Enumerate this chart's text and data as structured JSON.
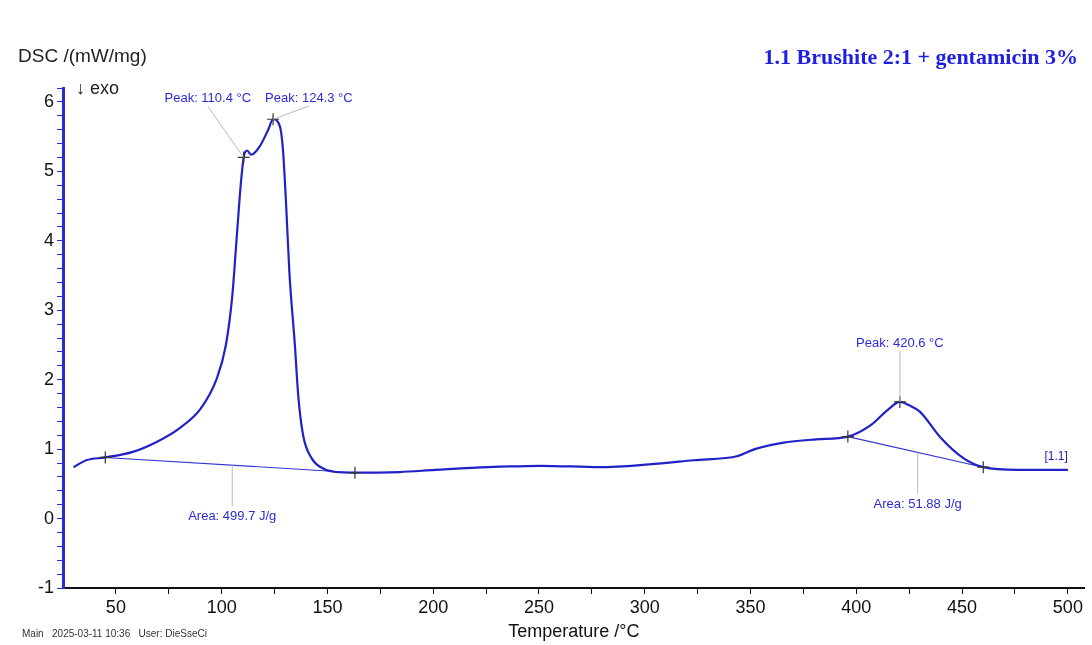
{
  "chart_data": {
    "type": "line",
    "title": "1.1 Brushite 2:1 + gentamicin 3%",
    "xlabel": "Temperature /°C",
    "ylabel": "DSC /(mW/mg)",
    "annotations": [
      "↓ exo",
      "Main   2025-03-11 10:36   User: DieSseCi",
      {
        "text": "Peak: 110.4 °C",
        "x": 110.4,
        "y": 5.2
      },
      {
        "text": "Peak: 124.3 °C",
        "x": 124.3,
        "y": 5.75
      },
      {
        "text": "Peak: 420.6 °C",
        "x": 420.6,
        "y": 1.68
      },
      {
        "text": "Area: 499.7 J/g",
        "x": 105,
        "y": 0.77
      },
      {
        "text": "Area: 51.88 J/g",
        "x": 429,
        "y": 0.95
      }
    ],
    "series": [
      {
        "name": "[1.1]",
        "color": "#2121c8",
        "marker": "none",
        "x": [
          30,
          36,
          45,
          58,
          69,
          80,
          90,
          97.5,
          102,
          105,
          107,
          109,
          110.4,
          112,
          114,
          118,
          122,
          124.3,
          127.5,
          129,
          130.5,
          132,
          134.6,
          136.2,
          138.5,
          142.5,
          148,
          154,
          163,
          184,
          201,
          226,
          251,
          279,
          302,
          323,
          344,
          352,
          365,
          381,
          396,
          407,
          415,
          420.6,
          425,
          430,
          440,
          450.6,
          460,
          478,
          500
        ],
        "values": [
          0.74,
          0.84,
          0.88,
          0.96,
          1.1,
          1.3,
          1.58,
          2.0,
          2.5,
          3.2,
          4.0,
          4.8,
          5.2,
          5.3,
          5.24,
          5.36,
          5.6,
          5.75,
          5.65,
          5.3,
          4.5,
          3.55,
          2.5,
          1.77,
          1.2,
          0.87,
          0.72,
          0.67,
          0.66,
          0.67,
          0.7,
          0.74,
          0.76,
          0.74,
          0.78,
          0.84,
          0.9,
          1.0,
          1.09,
          1.14,
          1.18,
          1.35,
          1.57,
          1.68,
          1.63,
          1.54,
          1.16,
          0.87,
          0.74,
          0.7,
          0.7
        ]
      },
      {
        "type": "line",
        "color": "#3434d0",
        "marker": "none",
        "x": [
          45,
          163
        ],
        "values": [
          0.88,
          0.66
        ]
      },
      {
        "type": "line",
        "color": "#3434d0",
        "marker": "none",
        "x": [
          396,
          460
        ],
        "values": [
          1.18,
          0.74
        ]
      },
      {
        "type": "scatter",
        "color": "#333333",
        "marker": "cross",
        "x": [
          45,
          110.4,
          124.3,
          163,
          396,
          420.6,
          460
        ],
        "values": [
          0.88,
          5.2,
          5.75,
          0.66,
          1.18,
          1.68,
          0.74
        ]
      }
    ],
    "xlim": [
      25,
      508
    ],
    "xticks": [
      50,
      {
        "value": 75,
        "label": null
      },
      100,
      {
        "value": 125,
        "label": null
      },
      150,
      {
        "value": 175,
        "label": null
      },
      200,
      {
        "value": 225,
        "label": null
      },
      250,
      {
        "value": 275,
        "label": null
      },
      300,
      {
        "value": 325,
        "label": null
      },
      350,
      {
        "value": 375,
        "label": null
      },
      400,
      {
        "value": 425,
        "label": null
      },
      450,
      {
        "value": 475,
        "label": null
      },
      500
    ],
    "ylim": [
      -1,
      6.2
    ],
    "yticks": [
      -1,
      {
        "value": -0.8,
        "label": null
      },
      {
        "value": -0.6,
        "label": null
      },
      {
        "value": -0.4,
        "label": null
      },
      {
        "value": -0.2,
        "label": null
      },
      0,
      {
        "value": 0.2,
        "label": null
      },
      {
        "value": 0.4,
        "label": null
      },
      {
        "value": 0.6,
        "label": null
      },
      {
        "value": 0.8,
        "label": null
      },
      1,
      {
        "value": 1.2,
        "label": null
      },
      {
        "value": 1.4,
        "label": null
      },
      {
        "value": 1.6,
        "label": null
      },
      {
        "value": 1.8,
        "label": null
      },
      2,
      {
        "value": 2.2,
        "label": null
      },
      {
        "value": 2.4,
        "label": null
      },
      {
        "value": 2.6,
        "label": null
      },
      {
        "value": 2.8,
        "label": null
      },
      3,
      {
        "value": 3.2,
        "label": null
      },
      {
        "value": 3.4,
        "label": null
      },
      {
        "value": 3.6,
        "label": null
      },
      {
        "value": 3.8,
        "label": null
      },
      4,
      {
        "value": 4.2,
        "label": null
      },
      {
        "value": 4.4,
        "label": null
      },
      {
        "value": 4.6,
        "label": null
      },
      {
        "value": 4.8,
        "label": null
      },
      5,
      {
        "value": 5.2,
        "label": null
      },
      {
        "value": 5.4,
        "label": null
      },
      {
        "value": 5.6,
        "label": null
      },
      {
        "value": 5.8,
        "label": null
      },
      6,
      {
        "value": 6.2,
        "label": null
      }
    ],
    "legend": false
  }
}
